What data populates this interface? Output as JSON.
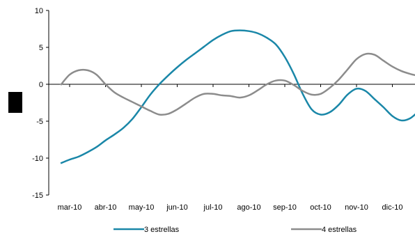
{
  "chart_data": {
    "type": "line",
    "categories": [
      "mar-10",
      "abr-10",
      "may-10",
      "jun-10",
      "jul-10",
      "ago-10",
      "sep-10",
      "oct-10",
      "nov-10",
      "dic-10"
    ],
    "x_start": 1.75,
    "x_end": 12,
    "ylim": [
      -15,
      10
    ],
    "yticks": [
      -15,
      -10,
      -5,
      0,
      5,
      10
    ],
    "grid": false,
    "legend_position": "bottom",
    "series": [
      {
        "name": "3 estrellas",
        "color": "#1a87a8",
        "points": [
          [
            1.75,
            -10.7
          ],
          [
            2.0,
            -10.2
          ],
          [
            2.25,
            -9.8
          ],
          [
            2.5,
            -9.2
          ],
          [
            2.75,
            -8.5
          ],
          [
            3.0,
            -7.6
          ],
          [
            3.25,
            -6.8
          ],
          [
            3.5,
            -5.9
          ],
          [
            3.75,
            -4.7
          ],
          [
            4.0,
            -3.1
          ],
          [
            4.25,
            -1.4
          ],
          [
            4.5,
            0.0
          ],
          [
            4.75,
            1.2
          ],
          [
            5.0,
            2.3
          ],
          [
            5.25,
            3.3
          ],
          [
            5.5,
            4.2
          ],
          [
            5.75,
            5.1
          ],
          [
            6.0,
            6.0
          ],
          [
            6.25,
            6.7
          ],
          [
            6.5,
            7.2
          ],
          [
            6.75,
            7.3
          ],
          [
            7.0,
            7.2
          ],
          [
            7.25,
            6.9
          ],
          [
            7.5,
            6.3
          ],
          [
            7.75,
            5.4
          ],
          [
            8.0,
            3.7
          ],
          [
            8.25,
            1.4
          ],
          [
            8.5,
            -1.3
          ],
          [
            8.75,
            -3.4
          ],
          [
            9.0,
            -4.1
          ],
          [
            9.25,
            -3.8
          ],
          [
            9.5,
            -2.8
          ],
          [
            9.75,
            -1.4
          ],
          [
            10.0,
            -0.6
          ],
          [
            10.25,
            -0.9
          ],
          [
            10.5,
            -2.0
          ],
          [
            10.75,
            -3.1
          ],
          [
            11.0,
            -4.3
          ],
          [
            11.25,
            -4.9
          ],
          [
            11.5,
            -4.6
          ],
          [
            11.75,
            -3.6
          ],
          [
            12.0,
            -2.8
          ],
          [
            12.25,
            -1.9
          ]
        ]
      },
      {
        "name": "4 estrellas",
        "color": "#8c8c8c",
        "points": [
          [
            1.75,
            -0.1
          ],
          [
            2.0,
            1.3
          ],
          [
            2.25,
            1.9
          ],
          [
            2.5,
            1.9
          ],
          [
            2.75,
            1.3
          ],
          [
            3.0,
            0.0
          ],
          [
            3.25,
            -1.1
          ],
          [
            3.5,
            -1.8
          ],
          [
            3.75,
            -2.4
          ],
          [
            4.0,
            -3.0
          ],
          [
            4.25,
            -3.6
          ],
          [
            4.5,
            -4.1
          ],
          [
            4.75,
            -4.0
          ],
          [
            5.0,
            -3.4
          ],
          [
            5.25,
            -2.6
          ],
          [
            5.5,
            -1.8
          ],
          [
            5.75,
            -1.3
          ],
          [
            6.0,
            -1.3
          ],
          [
            6.25,
            -1.5
          ],
          [
            6.5,
            -1.6
          ],
          [
            6.75,
            -1.8
          ],
          [
            7.0,
            -1.5
          ],
          [
            7.25,
            -0.8
          ],
          [
            7.5,
            0.0
          ],
          [
            7.75,
            0.5
          ],
          [
            8.0,
            0.5
          ],
          [
            8.25,
            -0.1
          ],
          [
            8.5,
            -0.9
          ],
          [
            8.75,
            -1.4
          ],
          [
            9.0,
            -1.3
          ],
          [
            9.25,
            -0.5
          ],
          [
            9.5,
            0.6
          ],
          [
            9.75,
            2.0
          ],
          [
            10.0,
            3.4
          ],
          [
            10.25,
            4.1
          ],
          [
            10.5,
            4.0
          ],
          [
            10.75,
            3.2
          ],
          [
            11.0,
            2.4
          ],
          [
            11.25,
            1.8
          ],
          [
            11.5,
            1.4
          ],
          [
            11.75,
            1.1
          ],
          [
            12.0,
            0.8
          ],
          [
            12.25,
            0.4
          ]
        ]
      }
    ]
  }
}
